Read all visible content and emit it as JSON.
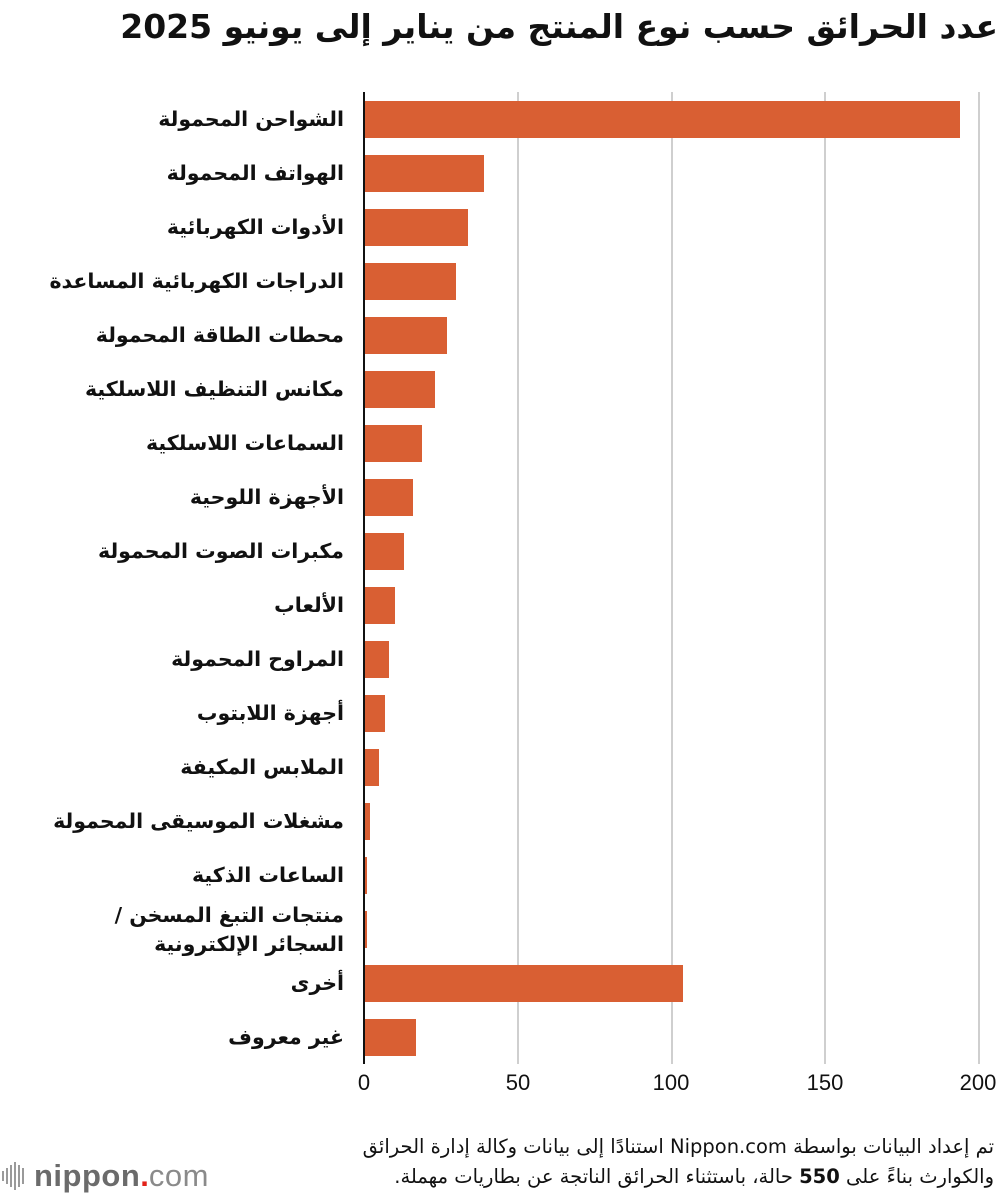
{
  "title": "عدد الحرائق حسب نوع المنتج من يناير إلى يونيو 2025",
  "chart_data": {
    "type": "bar",
    "orientation": "horizontal",
    "title": "عدد الحرائق حسب نوع المنتج من يناير إلى يونيو 2025",
    "xlabel": "",
    "ylabel": "",
    "xlim": [
      0,
      200
    ],
    "xticks": [
      0,
      50,
      100,
      150,
      200
    ],
    "grid": true,
    "bar_color": "#d95f33",
    "categories": [
      "الشواحن المحمولة",
      "الهواتف المحمولة",
      "الأدوات الكهربائية",
      "الدراجات الكهربائية المساعدة",
      "محطات الطاقة المحمولة",
      "مكانس التنظيف اللاسلكية",
      "السماعات اللاسلكية",
      "الأجهزة اللوحية",
      "مكبرات الصوت المحمولة",
      "الألعاب",
      "المراوح المحمولة",
      "أجهزة اللابتوب",
      "الملابس المكيفة",
      "مشغلات الموسيقى المحمولة",
      "الساعات الذكية",
      "منتجات التبغ المسخن / السجائر الإلكترونية",
      "أخرى",
      "غير معروف"
    ],
    "values": [
      194,
      39,
      34,
      30,
      27,
      23,
      19,
      16,
      13,
      10,
      8,
      7,
      5,
      2,
      1,
      1,
      104,
      17
    ]
  },
  "labels": {
    "c0": "الشواحن المحمولة",
    "c1": "الهواتف المحمولة",
    "c2": "الأدوات الكهربائية",
    "c3": "الدراجات الكهربائية المساعدة",
    "c4": "محطات الطاقة المحمولة",
    "c5": "مكانس التنظيف اللاسلكية",
    "c6": "السماعات اللاسلكية",
    "c7": "الأجهزة اللوحية",
    "c8": "مكبرات الصوت المحمولة",
    "c9": "الألعاب",
    "c10": "المراوح المحمولة",
    "c11": "أجهزة اللابتوب",
    "c12": "الملابس المكيفة",
    "c13": "مشغلات الموسيقى المحمولة",
    "c14": "الساعات الذكية",
    "c15_line1": "منتجات التبغ المسخن /",
    "c15_line2": "السجائر الإلكترونية",
    "c16": "أخرى",
    "c17": "غير معروف"
  },
  "ticks": [
    "0",
    "50",
    "100",
    "150",
    "200"
  ],
  "footnote": {
    "line1": "تم إعداد البيانات بواسطة Nippon.com استنادًا إلى بيانات وكالة إدارة الحرائق",
    "line2_a": "والكوارث بناءً على ",
    "line2_num": "550",
    "line2_b": " حالة، باستثناء الحرائق الناتجة عن بطاريات مهملة."
  },
  "logo": {
    "word": "nippon",
    "dot": ".",
    "tld": "com"
  }
}
